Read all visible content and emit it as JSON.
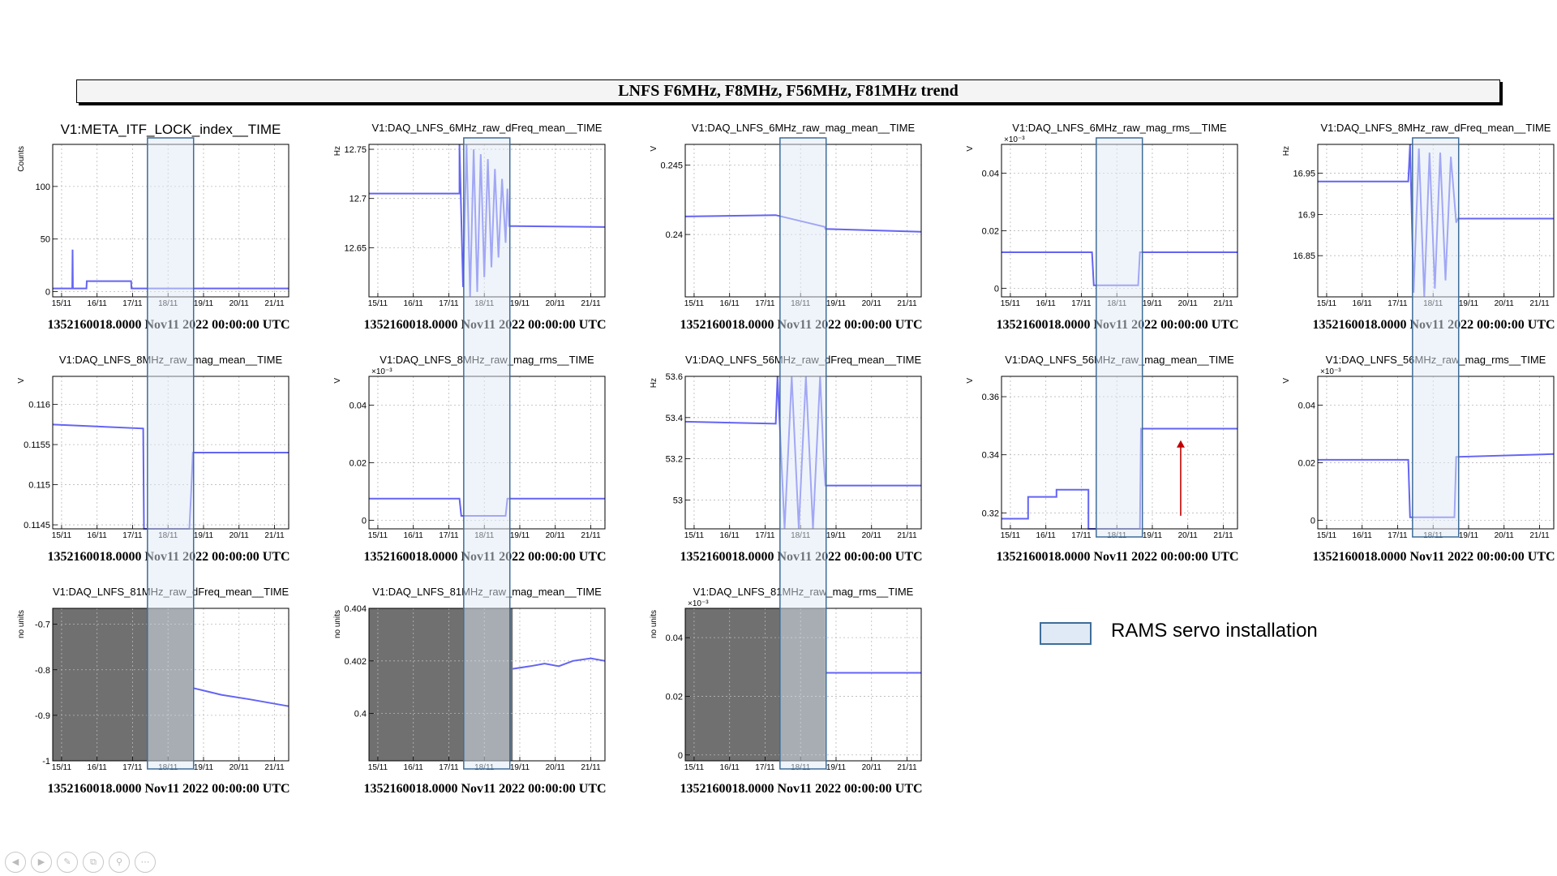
{
  "banner": {
    "title": "LNFS F6MHz, F8MHz, F56MHz, F81MHz trend"
  },
  "legend": {
    "label": "RAMS servo installation",
    "fill": "#dfeaf6",
    "stroke": "#3f6d99"
  },
  "colors": {
    "trace": "#6464f5",
    "grey_region": "#707070",
    "arrow": "#c00000"
  },
  "nav_icons": [
    "previous-icon",
    "next-icon",
    "pen-icon",
    "copy-icon",
    "zoom-icon",
    "more-icon"
  ],
  "chart_data": [
    {
      "type": "line",
      "title": "V1:META_ITF_LOCK_index__TIME",
      "ylabel": "Counts",
      "yticks": [
        {
          "v": 0,
          "l": "0"
        },
        {
          "v": 50,
          "l": "50"
        },
        {
          "v": 100,
          "l": "100"
        }
      ],
      "ylim": [
        -5,
        140
      ],
      "x_ticks": [
        "15/11",
        "16/11",
        "17/11",
        "18/11",
        "19/11",
        "20/11",
        "21/11"
      ],
      "xlim": [
        14.75,
        21.4
      ],
      "footer": "1352160018.0000 Nov11 2022 00:00:00 UTC",
      "series": [
        {
          "x": [
            14.75,
            15.3,
            15.31,
            15.32,
            15.35,
            15.36,
            15.7,
            15.71,
            16.96,
            16.97,
            21.4
          ],
          "y": [
            3,
            3,
            40,
            3,
            3,
            3,
            3,
            10,
            10,
            3,
            3
          ]
        }
      ]
    },
    {
      "type": "line",
      "title": "V1:DAQ_LNFS_6MHz_raw_dFreq_mean__TIME",
      "ylabel": "Hz",
      "yticks": [
        {
          "v": 12.65,
          "l": "12.65"
        },
        {
          "v": 12.7,
          "l": "12.7"
        },
        {
          "v": 12.75,
          "l": "12.75"
        }
      ],
      "ylim": [
        12.6,
        12.755
      ],
      "x_ticks": [
        "15/11",
        "16/11",
        "17/11",
        "18/11",
        "19/11",
        "20/11",
        "21/11"
      ],
      "xlim": [
        14.75,
        21.4
      ],
      "footer": "1352160018.0000 Nov11 2022 00:00:00 UTC",
      "series": [
        {
          "x": [
            14.75,
            17.3,
            17.3,
            17.4,
            17.5,
            17.6,
            17.7,
            17.8,
            17.9,
            18.0,
            18.1,
            18.2,
            18.3,
            18.4,
            18.5,
            18.6,
            18.65,
            18.7,
            21.4
          ],
          "y": [
            12.705,
            12.705,
            12.755,
            12.61,
            12.755,
            12.6,
            12.75,
            12.605,
            12.745,
            12.62,
            12.74,
            12.63,
            12.73,
            12.64,
            12.72,
            12.655,
            12.71,
            12.672,
            12.671
          ]
        }
      ]
    },
    {
      "type": "line",
      "title": "V1:DAQ_LNFS_6MHz_raw_mag_mean__TIME",
      "ylabel": "V",
      "yticks": [
        {
          "v": 0.24,
          "l": "0.24"
        },
        {
          "v": 0.245,
          "l": "0.245"
        }
      ],
      "ylim": [
        0.2355,
        0.2465
      ],
      "x_ticks": [
        "15/11",
        "16/11",
        "17/11",
        "18/11",
        "19/11",
        "20/11",
        "21/11"
      ],
      "xlim": [
        14.75,
        21.4
      ],
      "footer": "1352160018.0000 Nov11 2022 00:00:00 UTC",
      "series": [
        {
          "x": [
            14.75,
            17.3,
            18.68,
            18.7,
            21.4
          ],
          "y": [
            0.2413,
            0.2414,
            0.24055,
            0.2404,
            0.2402
          ]
        }
      ]
    },
    {
      "type": "line",
      "title": "V1:DAQ_LNFS_6MHz_raw_mag_rms__TIME",
      "ylabel": "V",
      "multiplier": "×10⁻³",
      "yticks": [
        {
          "v": 0,
          "l": "0"
        },
        {
          "v": 0.02,
          "l": "0.02"
        },
        {
          "v": 0.04,
          "l": "0.04"
        }
      ],
      "ylim": [
        -0.003,
        0.05
      ],
      "x_ticks": [
        "15/11",
        "16/11",
        "17/11",
        "18/11",
        "19/11",
        "20/11",
        "21/11"
      ],
      "xlim": [
        14.75,
        21.4
      ],
      "footer": "1352160018.0000 Nov11 2022 00:00:00 UTC",
      "series": [
        {
          "x": [
            14.75,
            17.3,
            17.35,
            18.6,
            18.65,
            21.4
          ],
          "y": [
            0.0125,
            0.0125,
            0.001,
            0.001,
            0.0125,
            0.0125
          ]
        }
      ]
    },
    {
      "type": "line",
      "title": "V1:DAQ_LNFS_8MHz_raw_dFreq_mean__TIME",
      "ylabel": "Hz",
      "yticks": [
        {
          "v": 16.85,
          "l": "16.85"
        },
        {
          "v": 16.9,
          "l": "16.9"
        },
        {
          "v": 16.95,
          "l": "16.95"
        }
      ],
      "ylim": [
        16.8,
        16.985
      ],
      "x_ticks": [
        "15/11",
        "16/11",
        "17/11",
        "18/11",
        "19/11",
        "20/11",
        "21/11"
      ],
      "xlim": [
        14.75,
        21.4
      ],
      "footer": "1352160018.0000 Nov11 2022 00:00:00 UTC",
      "series": [
        {
          "x": [
            14.75,
            17.3,
            17.35,
            17.45,
            17.6,
            17.75,
            17.9,
            18.05,
            18.2,
            18.35,
            18.5,
            18.65,
            18.7,
            21.4
          ],
          "y": [
            16.94,
            16.94,
            16.985,
            16.805,
            16.98,
            16.8,
            16.975,
            16.81,
            16.975,
            16.82,
            16.97,
            16.89,
            16.895,
            16.895
          ]
        }
      ]
    },
    {
      "type": "line",
      "title": "V1:DAQ_LNFS_8MHz_raw_mag_mean__TIME",
      "ylabel": "V",
      "yticks": [
        {
          "v": 0.1145,
          "l": "0.1145"
        },
        {
          "v": 0.115,
          "l": "0.115"
        },
        {
          "v": 0.1155,
          "l": "0.1155"
        },
        {
          "v": 0.116,
          "l": "0.116"
        }
      ],
      "ylim": [
        0.11445,
        0.11635
      ],
      "x_ticks": [
        "15/11",
        "16/11",
        "17/11",
        "18/11",
        "19/11",
        "20/11",
        "21/11"
      ],
      "xlim": [
        14.75,
        21.4
      ],
      "footer": "1352160018.0000 Nov11 2022 00:00:00 UTC",
      "series": [
        {
          "x": [
            14.75,
            17.3,
            17.32,
            18.6,
            18.65,
            18.7,
            21.4
          ],
          "y": [
            0.11575,
            0.1157,
            0.11445,
            0.11445,
            0.1149,
            0.1154,
            0.1154
          ]
        }
      ]
    },
    {
      "type": "line",
      "title": "V1:DAQ_LNFS_8MHz_raw_mag_rms__TIME",
      "ylabel": "V",
      "multiplier": "×10⁻³",
      "yticks": [
        {
          "v": 0,
          "l": "0"
        },
        {
          "v": 0.02,
          "l": "0.02"
        },
        {
          "v": 0.04,
          "l": "0.04"
        }
      ],
      "ylim": [
        -0.003,
        0.05
      ],
      "x_ticks": [
        "15/11",
        "16/11",
        "17/11",
        "18/11",
        "19/11",
        "20/11",
        "21/11"
      ],
      "xlim": [
        14.75,
        21.4
      ],
      "footer": "1352160018.0000 Nov11 2022 00:00:00 UTC",
      "series": [
        {
          "x": [
            14.75,
            17.3,
            17.35,
            18.6,
            18.65,
            21.4
          ],
          "y": [
            0.0075,
            0.0075,
            0.0015,
            0.0015,
            0.0075,
            0.0075
          ]
        }
      ]
    },
    {
      "type": "line",
      "title": "V1:DAQ_LNFS_56MHz_raw_dFreq_mean__TIME",
      "ylabel": "Hz",
      "yticks": [
        {
          "v": 53,
          "l": "53"
        },
        {
          "v": 53.2,
          "l": "53.2"
        },
        {
          "v": 53.4,
          "l": "53.4"
        },
        {
          "v": 53.6,
          "l": "53.6"
        }
      ],
      "ylim": [
        52.86,
        53.6
      ],
      "x_ticks": [
        "15/11",
        "16/11",
        "17/11",
        "18/11",
        "19/11",
        "20/11",
        "21/11"
      ],
      "xlim": [
        14.75,
        21.4
      ],
      "footer": "1352160018.0000 Nov11 2022 00:00:00 UTC",
      "series": [
        {
          "x": [
            14.75,
            17.3,
            17.35,
            17.55,
            17.75,
            17.95,
            18.15,
            18.35,
            18.55,
            18.65,
            18.7,
            21.4
          ],
          "y": [
            53.38,
            53.37,
            53.6,
            52.86,
            53.6,
            52.86,
            53.6,
            52.86,
            53.6,
            53.2,
            53.07,
            53.07
          ]
        }
      ]
    },
    {
      "type": "line",
      "title": "V1:DAQ_LNFS_56MHz_raw_mag_mean__TIME",
      "ylabel": "V",
      "yticks": [
        {
          "v": 0.32,
          "l": "0.32"
        },
        {
          "v": 0.34,
          "l": "0.34"
        },
        {
          "v": 0.36,
          "l": "0.36"
        }
      ],
      "ylim": [
        0.3145,
        0.367
      ],
      "x_ticks": [
        "15/11",
        "16/11",
        "17/11",
        "18/11",
        "19/11",
        "20/11",
        "21/11"
      ],
      "xlim": [
        14.75,
        21.4
      ],
      "footer": "1352160018.0000 Nov11 2022 00:00:00 UTC",
      "series": [
        {
          "x": [
            14.75,
            15.5,
            15.5,
            16.3,
            16.3,
            17.2,
            17.2,
            18.65,
            18.68,
            18.72,
            21.4
          ],
          "y": [
            0.318,
            0.318,
            0.3255,
            0.3255,
            0.328,
            0.328,
            0.3145,
            0.3145,
            0.349,
            0.349,
            0.349
          ]
        }
      ],
      "annotation": {
        "type": "arrow",
        "x": 19.8,
        "y_from": 0.319,
        "y_to": 0.345
      }
    },
    {
      "type": "line",
      "title": "V1:DAQ_LNFS_56MHz_raw_mag_rms__TIME",
      "ylabel": "V",
      "multiplier": "×10⁻³",
      "yticks": [
        {
          "v": 0,
          "l": "0"
        },
        {
          "v": 0.02,
          "l": "0.02"
        },
        {
          "v": 0.04,
          "l": "0.04"
        }
      ],
      "ylim": [
        -0.003,
        0.05
      ],
      "x_ticks": [
        "15/11",
        "16/11",
        "17/11",
        "18/11",
        "19/11",
        "20/11",
        "21/11"
      ],
      "xlim": [
        14.75,
        21.4
      ],
      "footer": "1352160018.0000 Nov11 2022 00:00:00 UTC",
      "series": [
        {
          "x": [
            14.75,
            17.3,
            17.35,
            18.6,
            18.65,
            21.4
          ],
          "y": [
            0.021,
            0.021,
            0.001,
            0.001,
            0.022,
            0.023
          ]
        }
      ]
    },
    {
      "type": "line",
      "title": "V1:DAQ_LNFS_81MHz_raw_dFreq_mean__TIME",
      "ylabel": "no units",
      "yticks": [
        {
          "v": -1,
          "l": "-1"
        },
        {
          "v": -0.9,
          "l": "-0.9"
        },
        {
          "v": -0.8,
          "l": "-0.8"
        },
        {
          "v": -0.7,
          "l": "-0.7"
        }
      ],
      "ylim": [
        -1.0,
        -0.665
      ],
      "x_ticks": [
        "15/11",
        "16/11",
        "17/11",
        "18/11",
        "19/11",
        "20/11",
        "21/11"
      ],
      "xlim": [
        14.75,
        21.4
      ],
      "footer": "1352160018.0000 Nov11 2022 00:00:00 UTC",
      "grey_until": 18.7,
      "series": [
        {
          "x": [
            18.7,
            19.5,
            20.3,
            21.4
          ],
          "y": [
            -0.84,
            -0.855,
            -0.865,
            -0.88
          ]
        }
      ]
    },
    {
      "type": "line",
      "title": "V1:DAQ_LNFS_81MHz_raw_mag_mean__TIME",
      "ylabel": "no units",
      "yticks": [
        {
          "v": 0.4,
          "l": "0.4"
        },
        {
          "v": 0.402,
          "l": "0.402"
        },
        {
          "v": 0.404,
          "l": "0.404"
        }
      ],
      "ylim": [
        0.3982,
        0.404
      ],
      "x_ticks": [
        "15/11",
        "16/11",
        "17/11",
        "18/11",
        "19/11",
        "20/11",
        "21/11"
      ],
      "xlim": [
        14.75,
        21.4
      ],
      "footer": "1352160018.0000 Nov11 2022 00:00:00 UTC",
      "grey_until": 18.8,
      "series": [
        {
          "x": [
            18.8,
            19.3,
            19.7,
            20.1,
            20.5,
            21.0,
            21.4
          ],
          "y": [
            0.4017,
            0.4018,
            0.4019,
            0.4018,
            0.402,
            0.4021,
            0.402
          ]
        }
      ]
    },
    {
      "type": "line",
      "title": "V1:DAQ_LNFS_81MHz_raw_mag_rms__TIME",
      "ylabel": "no units",
      "multiplier": "×10⁻³",
      "yticks": [
        {
          "v": 0,
          "l": "0"
        },
        {
          "v": 0.02,
          "l": "0.02"
        },
        {
          "v": 0.04,
          "l": "0.04"
        }
      ],
      "ylim": [
        -0.002,
        0.05
      ],
      "x_ticks": [
        "15/11",
        "16/11",
        "17/11",
        "18/11",
        "19/11",
        "20/11",
        "21/11"
      ],
      "xlim": [
        14.75,
        21.4
      ],
      "footer": "1352160018.0000 Nov11 2022 00:00:00 UTC",
      "grey_until": 18.7,
      "series": [
        {
          "x": [
            18.7,
            21.4
          ],
          "y": [
            0.028,
            0.028
          ]
        }
      ]
    }
  ]
}
